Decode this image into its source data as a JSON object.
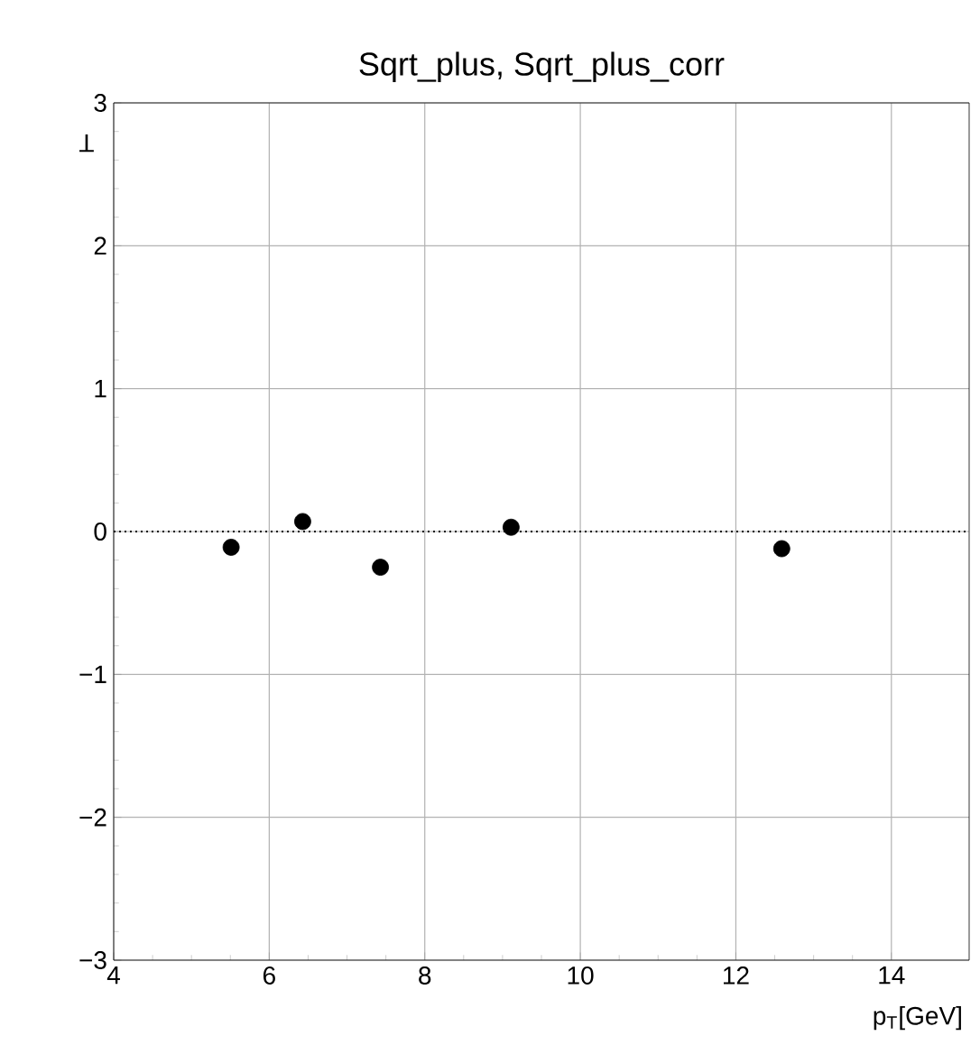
{
  "chart_data": {
    "type": "scatter",
    "title": "Sqrt_plus, Sqrt_plus_corr",
    "xlabel": "p$_{T}$[GeV]",
    "ylabel": "T",
    "x": [
      5.51,
      6.43,
      7.43,
      9.11,
      12.59
    ],
    "series": [
      {
        "color": "#000000",
        "values": [
          -0.11,
          0.07,
          -0.25,
          0.03,
          -0.12
        ]
      }
    ],
    "xlim": [
      4,
      15
    ],
    "xticks": [
      4,
      6,
      8,
      10,
      12,
      14
    ],
    "ylim": [
      -3,
      3
    ],
    "yticks": [
      {
        "value": -3,
        "label": "−3"
      },
      {
        "value": -2,
        "label": "−2"
      },
      {
        "value": -1,
        "label": "−1"
      },
      0,
      1,
      2,
      3
    ],
    "ref_lines": [
      {
        "axis": "y",
        "value": 0,
        "color": "#000000",
        "line_style": "dotted"
      }
    ],
    "grid": true,
    "marker": "circle"
  }
}
